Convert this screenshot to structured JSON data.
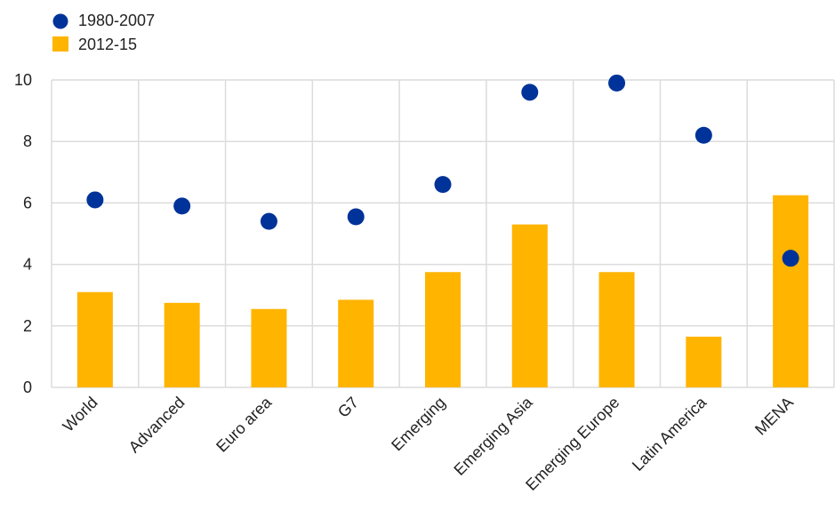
{
  "chart_data": {
    "type": "bar",
    "categories": [
      "World",
      "Advanced",
      "Euro area",
      "G7",
      "Emerging",
      "Emerging Asia",
      "Emerging Europe",
      "Latin America",
      "MENA"
    ],
    "series": [
      {
        "name": "1980-2007",
        "kind": "scatter",
        "color": "#003399",
        "values": [
          6.1,
          5.9,
          5.4,
          5.55,
          6.6,
          9.6,
          9.9,
          8.2,
          4.2
        ]
      },
      {
        "name": "2012-15",
        "kind": "bar",
        "color": "#FFB400",
        "values": [
          3.1,
          2.75,
          2.55,
          2.85,
          3.75,
          5.3,
          3.75,
          1.65,
          6.25
        ]
      }
    ],
    "yticks": [
      "0",
      "2",
      "4",
      "6",
      "8",
      "10"
    ],
    "ylim": [
      0,
      10
    ],
    "grid": true,
    "legend_position": "top-left"
  }
}
